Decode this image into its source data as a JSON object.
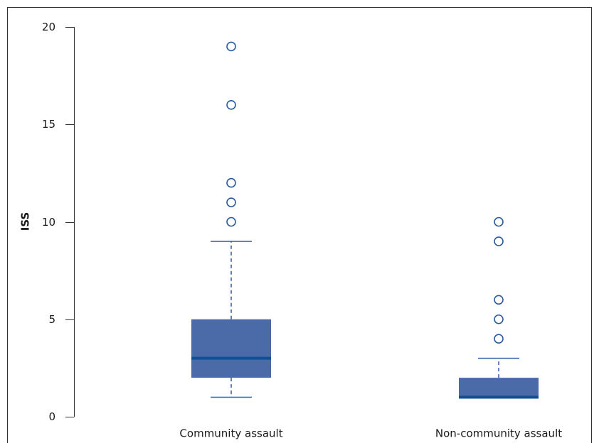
{
  "chart_data": {
    "type": "boxplot",
    "title": "",
    "xlabel": "",
    "ylabel": "ISS",
    "ylim": [
      0,
      20
    ],
    "yticks": [
      0,
      5,
      10,
      15,
      20
    ],
    "grid": false,
    "colors": {
      "box_fill": "#4a6aa8",
      "median": "#0f4f96",
      "whisker": "#2c5aa0",
      "outlier": "#2c5aa0",
      "axis": "#333333"
    },
    "categories": [
      "Community assault",
      "Non-community assault"
    ],
    "boxes": [
      {
        "category": "Community assault",
        "whisker_low": 1,
        "q1": 2,
        "median": 3,
        "q3": 5,
        "whisker_high": 9,
        "outliers": [
          10,
          11,
          12,
          16,
          19
        ]
      },
      {
        "category": "Non-community assault",
        "whisker_low": 1,
        "q1": 1,
        "median": 1,
        "q3": 2,
        "whisker_high": 3,
        "outliers": [
          4,
          5,
          6,
          9,
          10
        ]
      }
    ]
  }
}
